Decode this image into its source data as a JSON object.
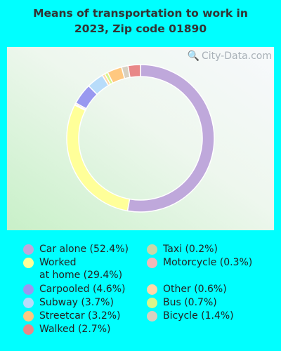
{
  "title": "Means of transportation to work in\n2023, Zip code 01890",
  "watermark": "City-Data.com",
  "chart_data": {
    "type": "donut",
    "title": "Means of transportation to work in 2023, Zip code 01890",
    "series": [
      {
        "name": "Car alone",
        "value": 52.4,
        "label": "Car alone (52.4%)",
        "color": "#BFA8DB"
      },
      {
        "name": "Worked at home",
        "value": 29.4,
        "label": "Worked\nat home (29.4%)",
        "color": "#FFFF99"
      },
      {
        "name": "Taxi",
        "value": 0.2,
        "label": "Taxi (0.2%)",
        "color": "#C8D8A8"
      },
      {
        "name": "Motorcycle",
        "value": 0.3,
        "label": "Motorcycle (0.3%)",
        "color": "#F2B8B8"
      },
      {
        "name": "Carpooled",
        "value": 4.6,
        "label": "Carpooled (4.6%)",
        "color": "#9999F0"
      },
      {
        "name": "Subway",
        "value": 3.7,
        "label": "Subway (3.7%)",
        "color": "#B8DCFA"
      },
      {
        "name": "Other",
        "value": 0.6,
        "label": "Other (0.6%)",
        "color": "#FFD8A8"
      },
      {
        "name": "Bus",
        "value": 0.7,
        "label": "Bus (0.7%)",
        "color": "#D8F58A"
      },
      {
        "name": "Streetcar",
        "value": 3.2,
        "label": "Streetcar (3.2%)",
        "color": "#FFC880"
      },
      {
        "name": "Bicycle",
        "value": 1.4,
        "label": "Bicycle (1.4%)",
        "color": "#D8D0C0"
      },
      {
        "name": "Walked",
        "value": 2.7,
        "label": "Walked (2.7%)",
        "color": "#E88888"
      }
    ],
    "draw_order": [
      "Car alone",
      "Worked at home",
      "Taxi",
      "Motorcycle",
      "Carpooled",
      "Subway",
      "Other",
      "Bus",
      "Streetcar",
      "Bicycle",
      "Walked"
    ],
    "legend_columns": [
      [
        "Car alone",
        "Worked at home",
        "Carpooled",
        "Subway",
        "Streetcar",
        "Walked"
      ],
      [
        "Taxi",
        "Motorcycle",
        "Other",
        "Bus",
        "Bicycle"
      ]
    ]
  }
}
